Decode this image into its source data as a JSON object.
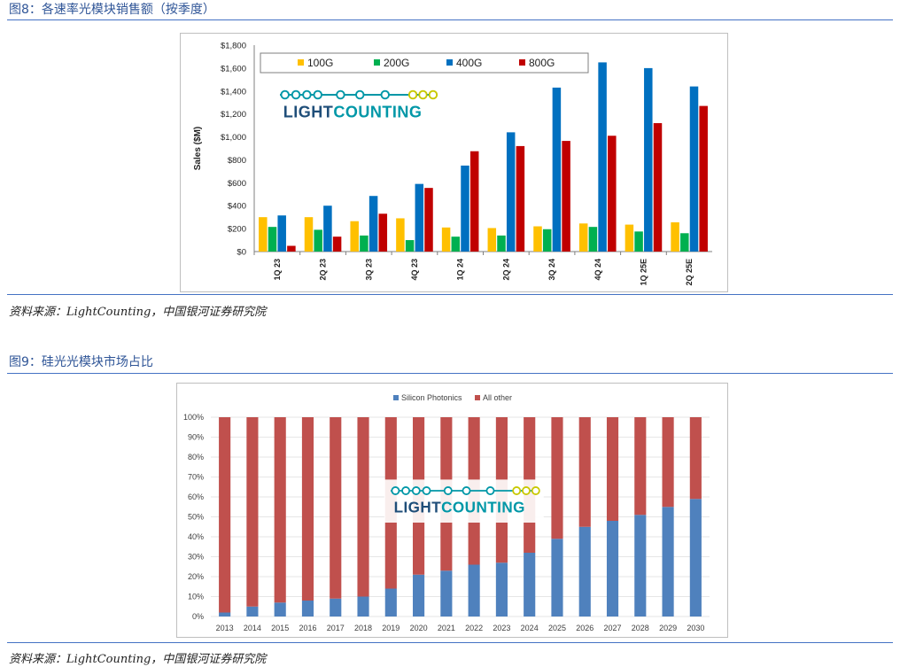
{
  "figure8": {
    "title": "图8：各速率光模块销售额（按季度）",
    "source": "资料来源：LightCounting，中国银河证券研究院"
  },
  "figure9": {
    "title": "图9：硅光光模块市场占比",
    "source": "资料来源：LightCounting，中国银河证券研究院"
  },
  "watermark": {
    "text_a": "LIGHT",
    "text_b": "COUNTING"
  },
  "colors": {
    "c100G": "#ffc000",
    "c200G": "#00b050",
    "c400G": "#0070c0",
    "c800G": "#c00000",
    "silicon": "#4f81bd",
    "other": "#c0504d",
    "logo_blue": "#1f4e79",
    "logo_teal": "#0097a7",
    "logo_yellow": "#c8c800"
  },
  "chart_data": [
    {
      "type": "bar",
      "ylabel": "Sales ($M)",
      "ylim": [
        0,
        1800
      ],
      "yticks": [
        "$0",
        "$200",
        "$400",
        "$600",
        "$800",
        "$1,000",
        "$1,200",
        "$1,400",
        "$1,600",
        "$1,800"
      ],
      "legend_position": "top",
      "categories": [
        "1Q 23",
        "2Q 23",
        "3Q 23",
        "4Q 23",
        "1Q 24",
        "2Q 24",
        "3Q 24",
        "4Q 24",
        "1Q 25E",
        "2Q 25E"
      ],
      "series": [
        {
          "name": "100G",
          "values": [
            300,
            300,
            265,
            290,
            210,
            205,
            220,
            245,
            235,
            255
          ]
        },
        {
          "name": "200G",
          "values": [
            215,
            190,
            140,
            100,
            130,
            140,
            195,
            215,
            175,
            160
          ]
        },
        {
          "name": "400G",
          "values": [
            315,
            400,
            485,
            590,
            750,
            1040,
            1430,
            1650,
            1600,
            1440
          ]
        },
        {
          "name": "800G",
          "values": [
            50,
            130,
            330,
            555,
            875,
            920,
            965,
            1010,
            1120,
            1270
          ]
        }
      ]
    },
    {
      "type": "bar",
      "stacked": true,
      "ylim": [
        0,
        100
      ],
      "yticks": [
        "0%",
        "10%",
        "20%",
        "30%",
        "40%",
        "50%",
        "60%",
        "70%",
        "80%",
        "90%",
        "100%"
      ],
      "legend_position": "top",
      "categories": [
        "2013",
        "2014",
        "2015",
        "2016",
        "2017",
        "2018",
        "2019",
        "2020",
        "2021",
        "2022",
        "2023",
        "2024",
        "2025",
        "2026",
        "2027",
        "2028",
        "2029",
        "2030"
      ],
      "series": [
        {
          "name": "Silicon Photonics",
          "values": [
            2,
            5,
            7,
            8,
            9,
            10,
            14,
            21,
            23,
            26,
            27,
            32,
            39,
            45,
            48,
            51,
            55,
            59
          ]
        },
        {
          "name": "All other",
          "values": [
            98,
            95,
            93,
            92,
            91,
            90,
            86,
            79,
            77,
            74,
            73,
            68,
            61,
            55,
            52,
            49,
            45,
            41
          ]
        }
      ]
    }
  ]
}
